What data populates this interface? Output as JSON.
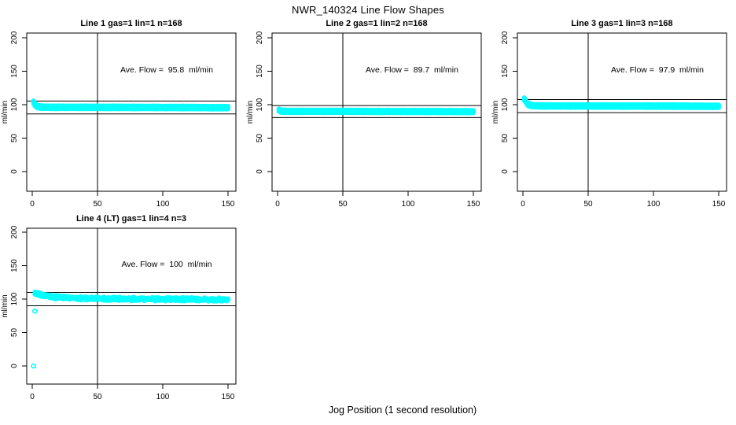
{
  "figure": {
    "title": "NWR_140324  Line Flow Shapes",
    "xlabel": "Jog Position (1 second resolution)",
    "background": "#ffffff"
  },
  "chart_data": {
    "type": "scatter",
    "title": "NWR_140324  Line Flow Shapes",
    "xlabel": "Jog Position (1 second resolution)",
    "ylabel": "ml/min",
    "xlim": [
      0,
      150
    ],
    "ylim": [
      0,
      200
    ],
    "x_ticks": [
      0,
      50,
      100,
      150
    ],
    "y_ticks": [
      0,
      50,
      100,
      150,
      200
    ],
    "grid": false,
    "point_color": "#00ffff",
    "line_color": "#000000",
    "panels": [
      {
        "title": "Line 1 gas=1 lin=1 n=168",
        "annotation": "Ave. Flow =  95.8  ml/min",
        "ave_flow_ml_min": 95.8,
        "n": 168,
        "vline_x": 50,
        "hlines": [
          105.4,
          86.2
        ],
        "band_halfwidth": 2.2,
        "noise": 0.25,
        "outliers": [],
        "points": [
          [
            1,
            103.5
          ],
          [
            2,
            100.5
          ],
          [
            3,
            98.5
          ],
          [
            4,
            97.3
          ],
          [
            5,
            96.8
          ],
          [
            7,
            96.4
          ],
          [
            10,
            96.2
          ],
          [
            20,
            96.0
          ],
          [
            50,
            96.0
          ],
          [
            100,
            95.8
          ],
          [
            150,
            95.6
          ]
        ]
      },
      {
        "title": "Line 2 gas=1 lin=2 n=168",
        "annotation": "Ave. Flow =  89.7  ml/min",
        "ave_flow_ml_min": 89.7,
        "n": 168,
        "vline_x": 50,
        "hlines": [
          98.7,
          80.7
        ],
        "band_halfwidth": 2.0,
        "noise": 0.2,
        "outliers": [],
        "points": [
          [
            1,
            91.8
          ],
          [
            2,
            90.8
          ],
          [
            3,
            90.3
          ],
          [
            5,
            90.1
          ],
          [
            10,
            90.0
          ],
          [
            50,
            90.0
          ],
          [
            100,
            89.8
          ],
          [
            150,
            89.6
          ]
        ]
      },
      {
        "title": "Line 3 gas=1 lin=3 n=168",
        "annotation": "Ave. Flow =  97.9  ml/min",
        "ave_flow_ml_min": 97.9,
        "n": 168,
        "vline_x": 50,
        "hlines": [
          107.7,
          88.1
        ],
        "band_halfwidth": 2.2,
        "noise": 0.25,
        "outliers": [],
        "points": [
          [
            1,
            108.2
          ],
          [
            2,
            106.0
          ],
          [
            3,
            102.5
          ],
          [
            4,
            100.5
          ],
          [
            5,
            99.4
          ],
          [
            7,
            98.7
          ],
          [
            10,
            98.3
          ],
          [
            20,
            98.0
          ],
          [
            50,
            98.0
          ],
          [
            100,
            97.8
          ],
          [
            150,
            97.6
          ]
        ]
      },
      {
        "title": "Line 4 (LT) gas=1 lin=4 n=3",
        "annotation": "Ave. Flow =  100  ml/min",
        "ave_flow_ml_min": 100,
        "n": 3,
        "vline_x": 50,
        "hlines": [
          110.0,
          90.0
        ],
        "band_halfwidth": 1.6,
        "noise": 1.3,
        "outliers": [
          [
            1,
            0
          ],
          [
            2,
            82
          ]
        ],
        "points": [
          [
            2,
            109.0
          ],
          [
            3,
            108.5
          ],
          [
            5,
            107.5
          ],
          [
            8,
            106.0
          ],
          [
            12,
            104.5
          ],
          [
            16,
            103.3
          ],
          [
            20,
            102.5
          ],
          [
            25,
            102.0
          ],
          [
            30,
            101.5
          ],
          [
            40,
            101.0
          ],
          [
            50,
            100.7
          ],
          [
            60,
            100.4
          ],
          [
            70,
            100.2
          ],
          [
            85,
            100.0
          ],
          [
            100,
            99.8
          ],
          [
            120,
            99.6
          ],
          [
            150,
            99.3
          ]
        ]
      }
    ]
  }
}
